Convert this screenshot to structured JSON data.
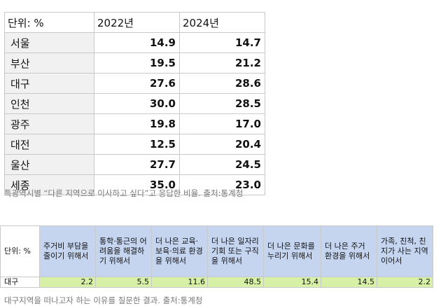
{
  "table1": {
    "headers": [
      "단위: %",
      "2022년",
      "2024년"
    ],
    "rows": [
      {
        "region": "서울",
        "y2022": "14.9",
        "y2024": "14.7"
      },
      {
        "region": "부산",
        "y2022": "19.5",
        "y2024": "21.2"
      },
      {
        "region": "대구",
        "y2022": "27.6",
        "y2024": "28.6"
      },
      {
        "region": "인천",
        "y2022": "30.0",
        "y2024": "28.5"
      },
      {
        "region": "광주",
        "y2022": "19.8",
        "y2024": "17.0"
      },
      {
        "region": "대전",
        "y2022": "12.5",
        "y2024": "20.4"
      },
      {
        "region": "울산",
        "y2022": "27.7",
        "y2024": "24.5"
      },
      {
        "region": "세종",
        "y2022": "35.0",
        "y2024": "23.0"
      }
    ],
    "caption": "특광역시별 “다른 지역으로 이사하고 싶다”고 응답한 비율. 출처:통계청"
  },
  "table2": {
    "unit_label": "단위: %",
    "reasons": [
      "주거비 부담을 줄이기 위해서",
      "통학·통근의 어려움을 해결하기 위해서",
      "더 나은 교육·보육·의료 환경을 위해서",
      "더 나은 일자리 기회 또는 구직을 위해서",
      "더 나은 문화를 누리기 위해서",
      "더 나은 주거 환경을 위해서",
      "가족, 친척, 친지가 사는 지역이어서"
    ],
    "row_label": "대구",
    "values": [
      "2.2",
      "5.5",
      "11.6",
      "48.5",
      "15.4",
      "14.5",
      "2.2"
    ],
    "caption": "대구지역을 떠나고자 하는 이유를 질문한 결과. 출처:통계청"
  },
  "colors": {
    "header_blue": "#c5d5f0",
    "value_green": "#d6f0a6",
    "region_gray": "#f1f1f1"
  }
}
